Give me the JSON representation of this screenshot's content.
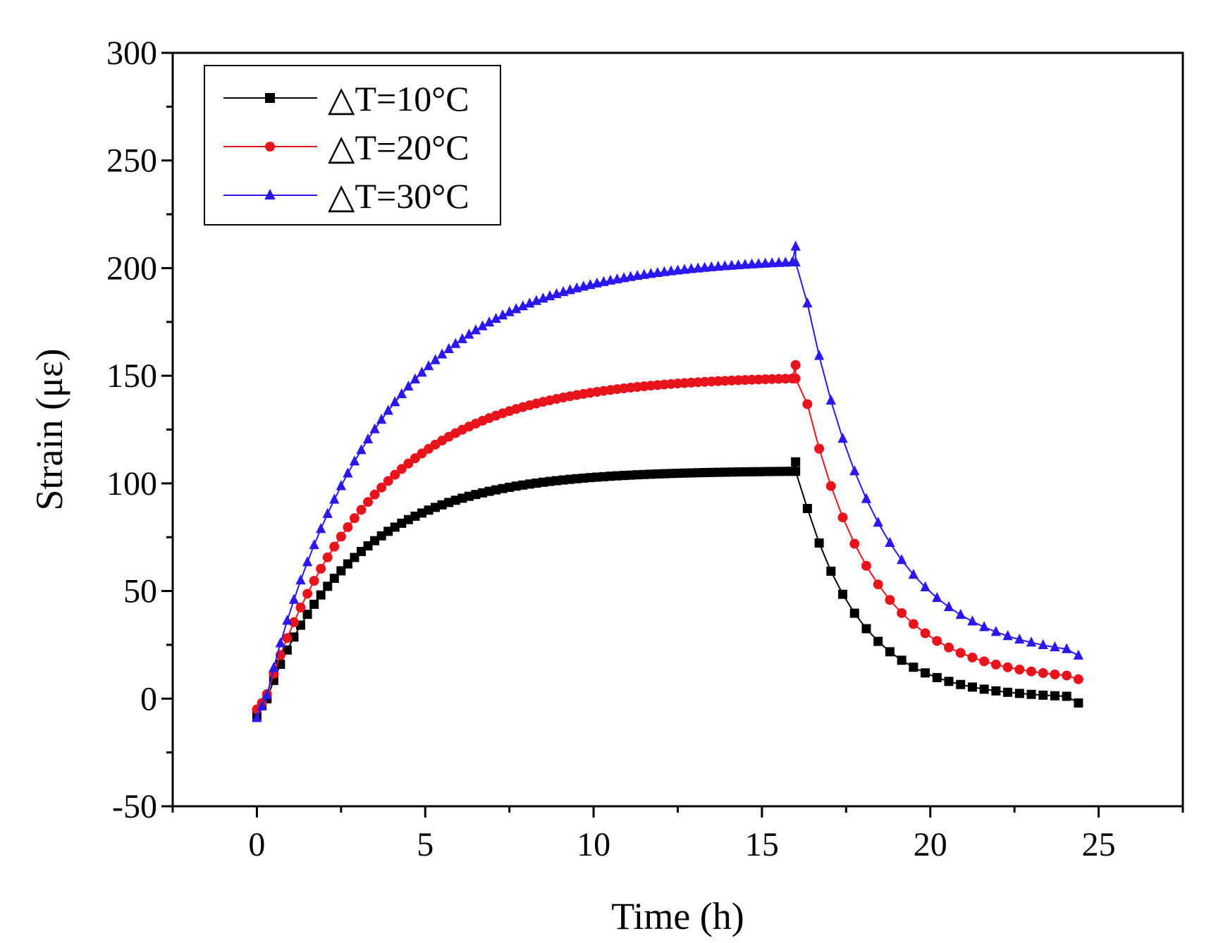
{
  "chart_data": {
    "type": "line",
    "title": "",
    "xlabel": "Time (h)",
    "ylabel": "Strain (με)",
    "xlim": [
      -2.5,
      27.5
    ],
    "ylim": [
      -50,
      300
    ],
    "xticks": [
      0,
      5,
      10,
      15,
      20,
      25
    ],
    "yticks": [
      -50,
      0,
      50,
      100,
      150,
      200,
      250,
      300
    ],
    "xtick_labels": [
      "0",
      "5",
      "10",
      "15",
      "20",
      "25"
    ],
    "ytick_labels": [
      "-50",
      "0",
      "50",
      "100",
      "150",
      "200",
      "250",
      "300"
    ],
    "x_minor_step": 2.5,
    "y_minor_step": 25,
    "grid": false,
    "legend_position": "top-left",
    "series": [
      {
        "name": "△T=10°C",
        "color": "#000000",
        "marker": "square",
        "heating": {
          "t_start": 0.3,
          "t_end": 16.0,
          "step": 0.2,
          "amplitude": 106,
          "tau": 2.8,
          "initial": -8,
          "peak": 110
        },
        "cooling": {
          "t_start": 16.35,
          "t_end": 24.5,
          "step": 0.35,
          "amplitude": 96,
          "tau": 1.75,
          "offset": 0,
          "end": -2
        }
      },
      {
        "name": "△T=20°C",
        "color": "#e8141c",
        "marker": "circle",
        "heating": {
          "t_start": 0.3,
          "t_end": 16.0,
          "step": 0.2,
          "amplitude": 150,
          "tau": 3.3,
          "initial": -5,
          "peak": 155
        },
        "cooling": {
          "t_start": 16.35,
          "t_end": 24.5,
          "step": 0.35,
          "amplitude": 140,
          "tau": 2.0,
          "offset": 8,
          "end": 9
        }
      },
      {
        "name": "△T=30°C",
        "color": "#2a18ee",
        "marker": "triangle",
        "heating": {
          "t_start": 0.3,
          "t_end": 16.0,
          "step": 0.2,
          "amplitude": 205,
          "tau": 3.5,
          "initial": -9,
          "peak": 210
        },
        "cooling": {
          "t_start": 16.35,
          "t_end": 24.5,
          "step": 0.35,
          "amplitude": 180,
          "tau": 2.2,
          "offset": 18,
          "end": 20
        }
      }
    ]
  }
}
